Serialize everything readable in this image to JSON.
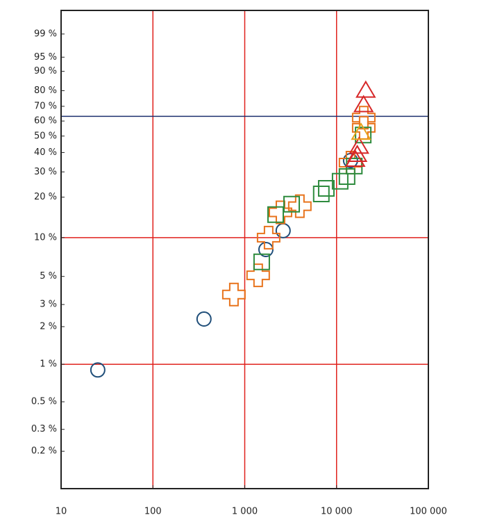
{
  "chart_data": {
    "type": "scatter",
    "xscale": "log",
    "yscale": "weibull",
    "xlim": [
      10,
      100000
    ],
    "xticks": [
      10,
      100,
      {
        "value": 1000,
        "label": "1 000"
      },
      {
        "value": 10000,
        "label": "10 000"
      },
      {
        "value": 100000,
        "label": "100 000"
      }
    ],
    "ylim": [
      0.1,
      99.92
    ],
    "yticks": [
      {
        "value": 0.2,
        "label": "0.2 %"
      },
      {
        "value": 0.3,
        "label": "0.3 %"
      },
      {
        "value": 0.5,
        "label": "0.5 %"
      },
      {
        "value": 1,
        "label": "1 %"
      },
      {
        "value": 2,
        "label": "2 %"
      },
      {
        "value": 3,
        "label": "3 %"
      },
      {
        "value": 5,
        "label": "5 %"
      },
      {
        "value": 10,
        "label": "10 %"
      },
      {
        "value": 20,
        "label": "20 %"
      },
      {
        "value": 30,
        "label": "30 %"
      },
      {
        "value": 40,
        "label": "40 %"
      },
      {
        "value": 50,
        "label": "50 %"
      },
      {
        "value": 60,
        "label": "60 %"
      },
      {
        "value": 70,
        "label": "70 %"
      },
      {
        "value": 80,
        "label": "80 %"
      },
      {
        "value": 90,
        "label": "90 %"
      },
      {
        "value": 95,
        "label": "95 %"
      },
      {
        "value": 99,
        "label": "99 %"
      }
    ],
    "grid_x": [
      100,
      1000,
      10000
    ],
    "grid_y": [
      1,
      10
    ],
    "grid_color": "#e0201c",
    "reference_y": 63.2,
    "reference_color": "#1c2f6e",
    "series": [
      {
        "marker": "circle",
        "color": "#1f4e79",
        "x": [
          25.1,
          360,
          1700,
          2620,
          14190
        ],
        "values": [
          0.9,
          2.3,
          8.1,
          11.3,
          35.6
        ]
      },
      {
        "marker": "cross",
        "color": "#e8731c",
        "x": [
          762,
          1400,
          1820,
          2450,
          3980,
          14190,
          19770,
          19770
        ],
        "values": [
          3.6,
          5.1,
          10,
          15.5,
          17.2,
          34.5,
          62.3,
          55.4
        ]
      },
      {
        "marker": "square",
        "color": "#2e8b3e",
        "x": [
          1530,
          2170,
          3240,
          6820,
          7730,
          10940,
          13000,
          15600,
          19500
        ],
        "values": [
          6.5,
          14.9,
          17.8,
          21.1,
          23.1,
          25.9,
          27.9,
          32.8,
          50.7
        ]
      },
      {
        "marker": "triangle",
        "color": "#d62728",
        "x": [
          20800,
          19700,
          17600,
          16800,
          16000
        ],
        "values": [
          79.5,
          70.2,
          42.9,
          38.2,
          35.6
        ]
      },
      {
        "marker": "triangle",
        "color": "#e8a21c",
        "x": [
          18500
        ],
        "values": [
          51.6
        ]
      }
    ]
  }
}
